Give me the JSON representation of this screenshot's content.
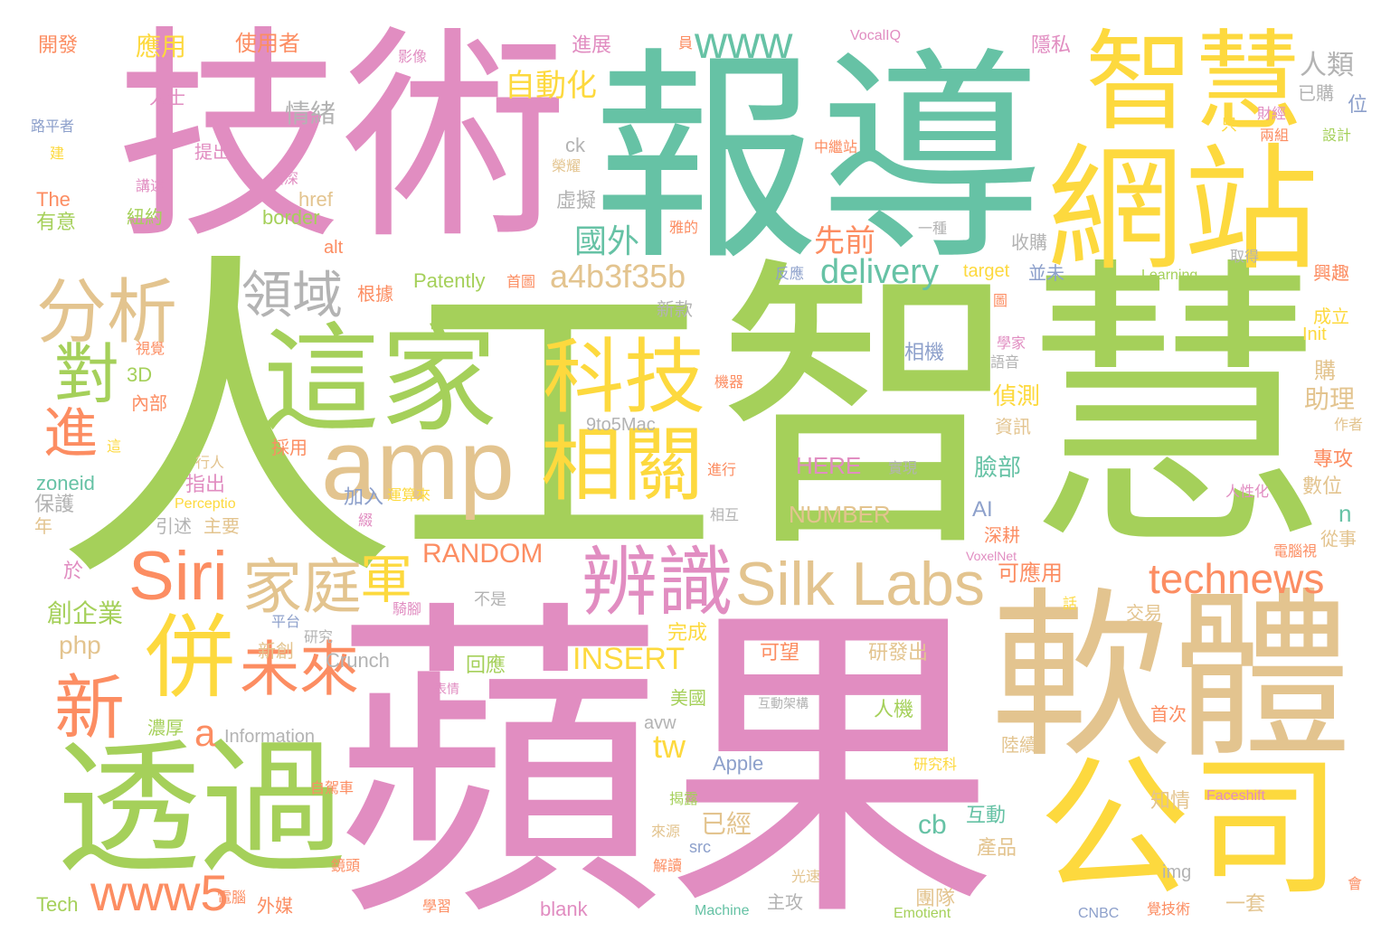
{
  "palette": {
    "green": "#a5d05a",
    "pink": "#e18dc1",
    "teal": "#66c2a5",
    "yellow": "#fdd93e",
    "tan": "#e3c48f",
    "orange": "#fc8d62",
    "gray": "#b3b3b3",
    "blue": "#8da0cb"
  },
  "words": {
    "ren": "人",
    "gong": "工",
    "zhihui_big": "智慧",
    "pingguo": "蘋果",
    "jishu": "技術",
    "baodao": "報導",
    "zhihui": "智慧",
    "wangzhan": "網站",
    "ruanti": "軟體",
    "gongsi": "公司",
    "touguo": "透過",
    "zhejia": "這家",
    "amp": "amp",
    "keji": "科技",
    "xiangguan": "相關",
    "silk_labs": "Silk Labs",
    "siri": "Siri",
    "bianshi": "辨識",
    "technews": "technews",
    "fenxi": "分析",
    "lingyu": "領域",
    "dui": "對",
    "jin": "進",
    "bing": "併",
    "jiating": "家庭",
    "jun": "軍",
    "weilai": "未來",
    "xin": "新",
    "www5": "www5",
    "www": "www",
    "a4b3f35b": "a4b3f35b",
    "delivery": "delivery",
    "guowai": "國外",
    "xianqian": "先前",
    "zidonghua": "自動化",
    "yingyong": "應用",
    "shiyongzhe": "使用者",
    "kaifa": "開發",
    "qingxu": "情緒",
    "renlei": "人類",
    "jinzhan": "進展",
    "yixiang": "影像",
    "vocaliq": "VocalIQ",
    "yinsi": "隱私",
    "yuan": "員",
    "yigou": "已購",
    "wei": "位",
    "caijing": "財經",
    "zhi": "只",
    "liangzu": "兩組",
    "sheji": "設計",
    "renshi": "人士",
    "lupingzhe": "路平者",
    "tichu": "提出",
    "ck": "ck",
    "rongyao": "榮耀",
    "zhongjizhan": "中繼站",
    "jian": "建",
    "goushi": "講述",
    "zishen": "資深",
    "the": "The",
    "youyi": "有意",
    "href": "href",
    "border": "border",
    "niuyue": "紐約",
    "xuni": "虛擬",
    "alt": "alt",
    "yizhong": "一種",
    "shougou": "收購",
    "xingqu": "興趣",
    "qude": "取得",
    "yade": "雅的",
    "patently": "Patently",
    "shoutu": "首圖",
    "genju": "根據",
    "target": "target",
    "bingwei": "並未",
    "fanying": "反應",
    "learning": "Learning",
    "tu": "圖",
    "chengli": "成立",
    "init": "Init",
    "xinkuan": "新款",
    "xiangji": "相機",
    "xuejia": "學家",
    "yuyin": "語音",
    "shijue": "視覺",
    "3d": "3D",
    "neibu": "內部",
    "jiqi": "機器",
    "gou": "購",
    "zhenche": "偵測",
    "zhuli": "助理",
    "zixun": "資訊",
    "9to5mac": "9to5Mac",
    "zuozhe": "作者",
    "zhe": "這",
    "xingren": "行人",
    "caiyong": "採用",
    "jinxing": "進行",
    "shixian": "實現",
    "here": "HERE",
    "lianbu": "臉部",
    "zhuangong": "專攻",
    "zoneid": "zoneid",
    "zhichu": "指出",
    "baohu": "保護",
    "nian": "年",
    "perceptio": "Perceptio",
    "jiaru": "加入",
    "yunsuanlai": "運算來",
    "number": "NUMBER",
    "ai": "AI",
    "shenggeng": "深耕",
    "renxinghua": "人性化",
    "shuwei": "數位",
    "n": "n",
    "yinshu": "引述",
    "zhuyao": "主要",
    "sui": "綴",
    "xianghu": "相互",
    "voxelnet": "VoxelNet",
    "diannaoshi": "電腦視",
    "congshi": "從事",
    "yu": "於",
    "random": "RANDOM",
    "keyingyong": "可應用",
    "chuangqiye": "創企業",
    "pingtai": "平台",
    "yanjiu": "研究",
    "qijiao": "騎腳",
    "bushi": "不是",
    "hua": "話",
    "jiaoyi": "交易",
    "php": "php",
    "a": "a",
    "xinchuang": "新創",
    "wancheng": "完成",
    "insert": "INSERT",
    "crunch": "Crunch",
    "huiying": "回應",
    "kewang": "可望",
    "yanfachu": "研發出",
    "biaoqing": "表情",
    "meiguo": "美國",
    "hudongganqing": "互動架構",
    "shouci": "首次",
    "tw": "tw",
    "yijing": "已經",
    "avw": "avw",
    "nonghou": "濃厚",
    "information": "Information",
    "renji": "人機",
    "luxu": "陸續",
    "apple": "Apple",
    "yanjiuke": "研究科",
    "zijiache": "自駕車",
    "jielu": "揭露",
    "zhiqing": "知情",
    "faceshift": "Faceshift",
    "cb": "cb",
    "hudong": "互動",
    "chanpin": "產品",
    "laiyuan": "來源",
    "src": "src",
    "img": "img",
    "jingtou": "鏡頭",
    "jiedu": "解讀",
    "guangsu": "光速",
    "hui": "會",
    "tech": "Tech",
    "diannao": "電腦",
    "waimei": "外媒",
    "xuexi": "學習",
    "blank": "blank",
    "zhugong": "主攻",
    "machine": "Machine",
    "emotient": "Emotient",
    "tuandui": "團隊",
    "yitao": "一套",
    "cnbc": "CNBC",
    "shoujishu": "覺技術"
  }
}
